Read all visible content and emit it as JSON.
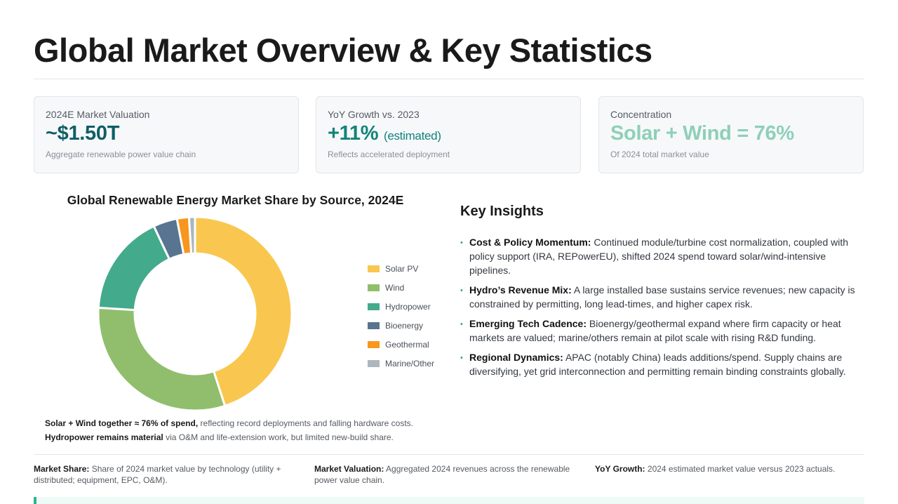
{
  "page": {
    "title": "Global Market Overview & Key Statistics"
  },
  "kpis": [
    {
      "label": "2024E Market Valuation",
      "value": "~$1.50T",
      "suffix": "",
      "note": "Aggregate renewable power value chain",
      "color": "#0f5e66"
    },
    {
      "label": "YoY Growth vs. 2023",
      "value": "+11%",
      "suffix": "(estimated)",
      "note": "Reflects accelerated deployment",
      "color": "#12837a"
    },
    {
      "label": "Concentration",
      "value": "Solar + Wind = 76%",
      "suffix": "",
      "note": "Of 2024 total market value",
      "color": "#8ed0b7"
    }
  ],
  "chart_data": {
    "type": "pie",
    "donut": true,
    "title": "Global Renewable Energy Market Share by Source, 2024E",
    "legend_position": "right",
    "categories": [
      "Solar PV",
      "Wind",
      "Hydropower",
      "Bioenergy",
      "Geothermal",
      "Marine/Other"
    ],
    "values": [
      45,
      31,
      17,
      4,
      2,
      1
    ],
    "colors": [
      "#f9c74f",
      "#90be6d",
      "#43aa8b",
      "#577590",
      "#f8961e",
      "#adb5bd"
    ]
  },
  "chart_notes": [
    {
      "bold": "Solar + Wind together ≈ 76% of spend,",
      "text": " reflecting record deployments and falling hardware costs."
    },
    {
      "bold": "Hydropower remains material",
      "text": " via O&M and life-extension work, but limited new-build share."
    }
  ],
  "insights": {
    "title": "Key Insights",
    "bullet": "•",
    "items": [
      {
        "bold": "Cost & Policy Momentum:",
        "text": " Continued module/turbine cost normalization, coupled with policy support (IRA, REPowerEU), shifted 2024 spend toward solar/wind-intensive pipelines."
      },
      {
        "bold": "Hydro’s Revenue Mix:",
        "text": " A large installed base sustains service revenues; new capacity is constrained by permitting, long lead-times, and higher capex risk."
      },
      {
        "bold": "Emerging Tech Cadence:",
        "text": " Bioenergy/geothermal expand where firm capacity or heat markets are valued; marine/others remain at pilot scale with rising R&D funding."
      },
      {
        "bold": "Regional Dynamics:",
        "text": " APAC (notably China) leads additions/spend. Supply chains are diversifying, yet grid interconnection and permitting remain binding constraints globally."
      }
    ]
  },
  "footnotes": [
    {
      "bold": "Market Share:",
      "text": " Share of 2024 market value by technology (utility + distributed; equipment, EPC, O&M)."
    },
    {
      "bold": "Market Valuation:",
      "text": " Aggregated 2024 revenues across the renewable power value chain."
    },
    {
      "bold": "YoY Growth:",
      "text": " 2024 estimated market value versus 2023 actuals."
    }
  ]
}
